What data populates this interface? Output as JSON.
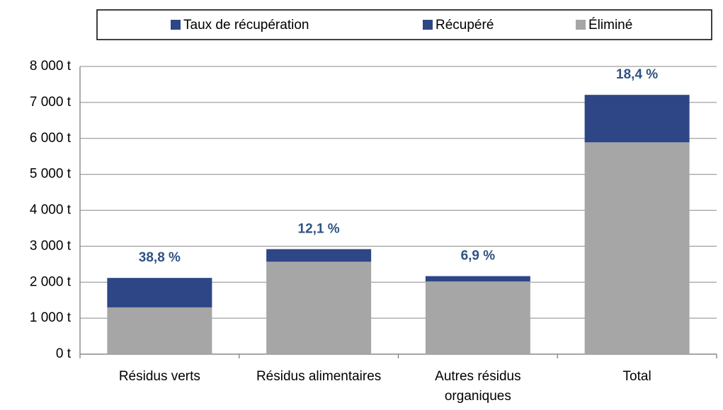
{
  "chart_data": {
    "type": "stacked_bar",
    "categories": [
      "Résidus verts",
      "Résidus alimentaires",
      "Autres résidus organiques",
      "Total"
    ],
    "series": [
      {
        "name": "Éliminé",
        "color": "#a6a6a6",
        "values": [
          1300,
          2570,
          2020,
          5890
        ]
      },
      {
        "name": "Récupéré",
        "color": "#2e4686",
        "values": [
          820,
          350,
          150,
          1320
        ]
      }
    ],
    "rate": {
      "name": "Taux de récupération",
      "color": "#2e4686",
      "label_color": "#2f5283",
      "values": [
        38.8,
        12.1,
        6.9,
        18.4
      ],
      "value_labels": [
        "38,8 %",
        "12,1 %",
        "6,9 %",
        "18,4 %"
      ]
    },
    "ylim": [
      0,
      8000
    ],
    "yticks": [
      {
        "value": 0,
        "label": "0 t"
      },
      {
        "value": 1000,
        "label": "1 000 t"
      },
      {
        "value": 2000,
        "label": "2 000 t"
      },
      {
        "value": 3000,
        "label": "3 000 t"
      },
      {
        "value": 4000,
        "label": "4 000 t"
      },
      {
        "value": 5000,
        "label": "5 000 t"
      },
      {
        "value": 6000,
        "label": "6 000 t"
      },
      {
        "value": 7000,
        "label": "7 000 t"
      },
      {
        "value": 8000,
        "label": "8 000 t"
      }
    ],
    "grid": true,
    "legend": "top"
  }
}
